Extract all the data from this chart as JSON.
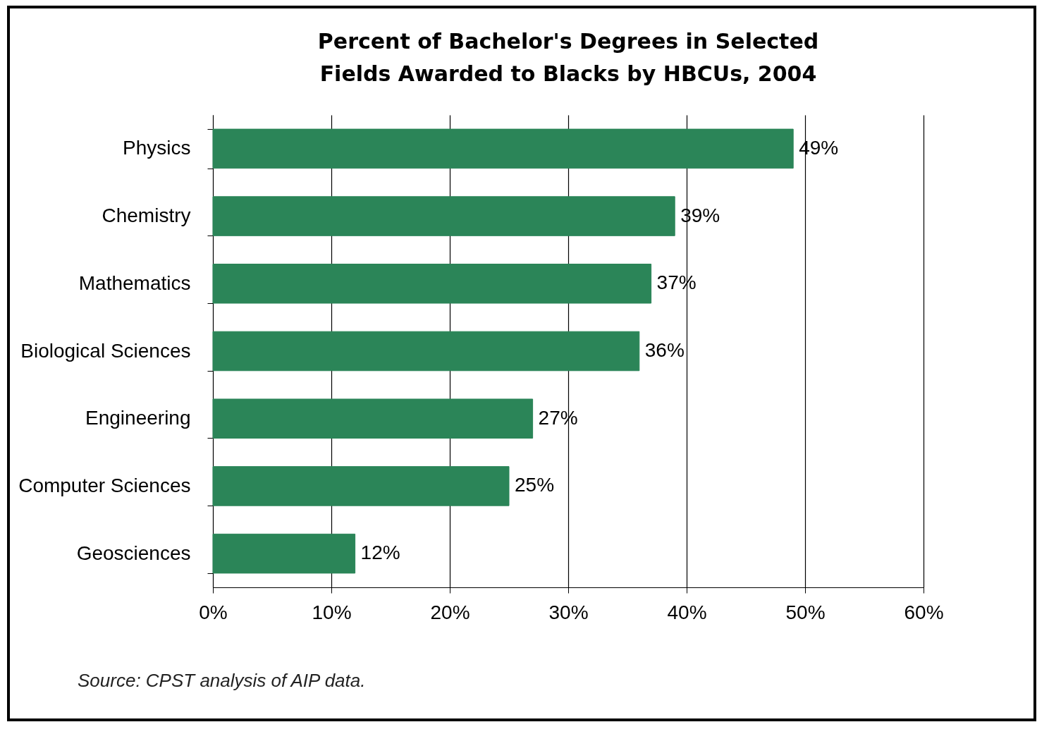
{
  "chart_data": {
    "type": "bar",
    "orientation": "horizontal",
    "title": "Percent of Bachelor's Degrees in Selected Fields Awarded to Blacks by HBCUs, 2004",
    "categories": [
      "Physics",
      "Chemistry",
      "Mathematics",
      "Biological Sciences",
      "Engineering",
      "Computer Sciences",
      "Geosciences"
    ],
    "values": [
      49,
      39,
      37,
      36,
      27,
      25,
      12
    ],
    "value_labels": [
      "49%",
      "39%",
      "37%",
      "36%",
      "27%",
      "25%",
      "12%"
    ],
    "color": "#2b8558",
    "xlim": [
      0,
      60
    ],
    "xticks": [
      {
        "value": 0,
        "label": "0%"
      },
      {
        "value": 10,
        "label": "10%"
      },
      {
        "value": 20,
        "label": "20%"
      },
      {
        "value": 30,
        "label": "30%"
      },
      {
        "value": 40,
        "label": "40%"
      },
      {
        "value": 50,
        "label": "50%"
      },
      {
        "value": 60,
        "label": "60%"
      }
    ],
    "grid": "x",
    "annotations": [
      "Source: CPST analysis of AIP data."
    ]
  }
}
